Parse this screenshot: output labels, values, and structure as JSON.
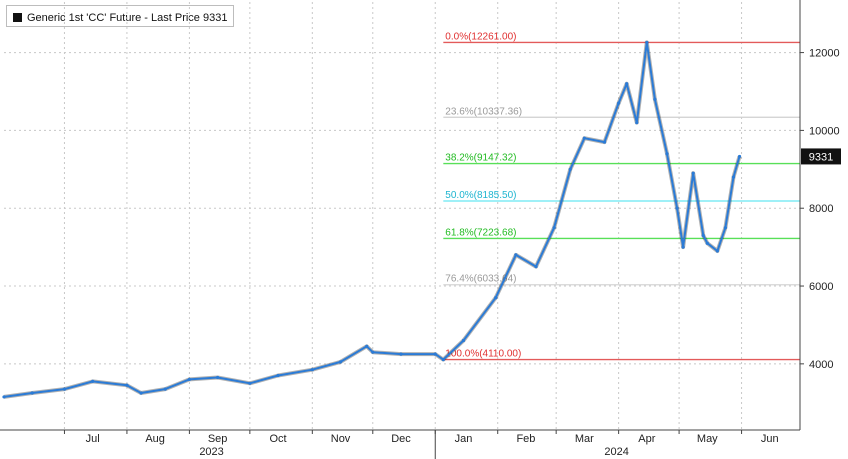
{
  "legend": {
    "label": "Generic 1st 'CC' Future - Last Price 9331",
    "swatch_color": "#111111"
  },
  "chart_data": {
    "type": "line",
    "title": "",
    "series": [
      {
        "name": "Generic 1st 'CC' Future - Last Price",
        "color": "#2b7bd6",
        "x": [
          "2023-06-01",
          "2023-06-15",
          "2023-07-01",
          "2023-07-15",
          "2023-08-01",
          "2023-08-08",
          "2023-08-20",
          "2023-09-01",
          "2023-09-15",
          "2023-10-01",
          "2023-10-15",
          "2023-11-01",
          "2023-11-15",
          "2023-11-28",
          "2023-12-01",
          "2023-12-15",
          "2024-01-01",
          "2024-01-05",
          "2024-01-15",
          "2024-01-31",
          "2024-02-10",
          "2024-02-20",
          "2024-02-29",
          "2024-03-08",
          "2024-03-15",
          "2024-03-25",
          "2024-04-01",
          "2024-04-05",
          "2024-04-10",
          "2024-04-15",
          "2024-04-19",
          "2024-04-25",
          "2024-04-30",
          "2024-05-03",
          "2024-05-08",
          "2024-05-13",
          "2024-05-15",
          "2024-05-20",
          "2024-05-24",
          "2024-05-28",
          "2024-05-31"
        ],
        "values": [
          3150,
          3250,
          3350,
          3550,
          3450,
          3250,
          3350,
          3600,
          3650,
          3500,
          3700,
          3850,
          4050,
          4450,
          4300,
          4250,
          4250,
          4110,
          4600,
          5700,
          6800,
          6500,
          7500,
          9000,
          9800,
          9700,
          10700,
          11200,
          10200,
          12261,
          10800,
          9400,
          8000,
          7000,
          8900,
          7300,
          7100,
          6900,
          7500,
          8800,
          9331
        ]
      }
    ],
    "x_tick_labels": [
      "Jul",
      "Aug",
      "Sep",
      "Oct",
      "Nov",
      "Dec",
      "Jan",
      "Feb",
      "Mar",
      "Apr",
      "May",
      "Jun"
    ],
    "x_tick_dates": [
      "2023-07-01",
      "2023-08-01",
      "2023-09-01",
      "2023-10-01",
      "2023-11-01",
      "2023-12-01",
      "2024-01-01",
      "2024-02-01",
      "2024-03-01",
      "2024-04-01",
      "2024-05-01",
      "2024-06-01"
    ],
    "year_labels": [
      {
        "text": "2023",
        "date": "2023-09-12"
      },
      {
        "text": "2024",
        "date": "2024-03-31"
      }
    ],
    "xlim": [
      "2023-06-01",
      "2024-06-30"
    ],
    "y_ticks": [
      4000,
      6000,
      8000,
      10000,
      12000
    ],
    "ylim": [
      2300,
      13300
    ],
    "last_price": {
      "value": 9331,
      "label": "9331"
    },
    "fibonacci": {
      "start_date": "2024-01-05",
      "levels": [
        {
          "label": "0.0%(12261.00)",
          "value": 12261,
          "color": "#e35a5a",
          "text_color": "#e03030"
        },
        {
          "label": "23.6%(10337.36)",
          "value": 10337.36,
          "color": "#cfcfcf",
          "text_color": "#9a9a9a"
        },
        {
          "label": "38.2%(9147.32)",
          "value": 9147.32,
          "color": "#58e058",
          "text_color": "#22bb22"
        },
        {
          "label": "50.0%(8185.50)",
          "value": 8185.5,
          "color": "#66e6f2",
          "text_color": "#1fb5d0"
        },
        {
          "label": "61.8%(7223.68)",
          "value": 7223.68,
          "color": "#58e058",
          "text_color": "#22bb22"
        },
        {
          "label": "76.4%(6033.64)",
          "value": 6033.64,
          "color": "#d6d6d6",
          "text_color": "#9a9a9a"
        },
        {
          "label": "100.0%(4110.00)",
          "value": 4110,
          "color": "#e35a5a",
          "text_color": "#e03030"
        }
      ]
    },
    "grid": true
  }
}
